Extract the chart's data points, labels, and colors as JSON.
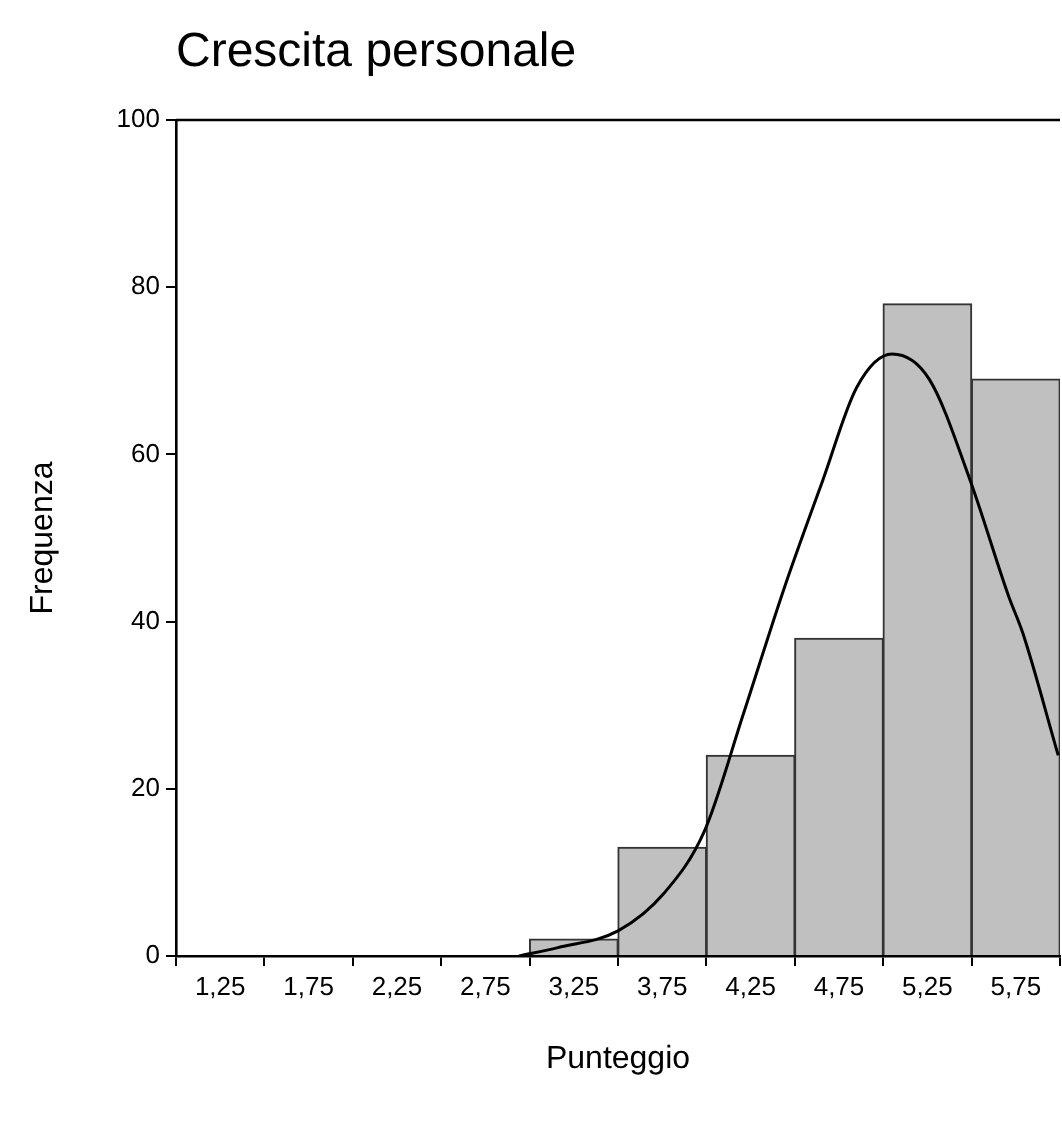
{
  "chart_data": {
    "type": "histogram",
    "title": "Crescita personale",
    "xlabel": "Punteggio",
    "ylabel": "Frequenza",
    "bins": [
      1,
      1.5,
      2,
      2.5,
      3,
      3.5,
      4,
      4.5,
      5,
      5.5,
      6
    ],
    "series": [
      {
        "color": "#c0c0c0",
        "values": [
          0,
          0,
          0,
          0,
          2,
          13,
          24,
          38,
          78,
          69
        ]
      },
      {
        "type": "line",
        "color": "#000000",
        "x": [
          2.94,
          3.16,
          3.5,
          3.76,
          3.99,
          4.21,
          4.44,
          4.66,
          4.85,
          5.05,
          5.26,
          5.49,
          5.71,
          5.79,
          5.99
        ],
        "values": [
          0,
          1,
          3,
          7.5,
          15,
          29,
          44,
          57,
          68,
          72,
          69,
          57,
          43,
          38.6,
          24
        ]
      }
    ],
    "xlim": [
      1,
      6
    ],
    "xticks": [
      {
        "value": 1.25,
        "label": "1,25"
      },
      {
        "value": 1.75,
        "label": "1,75"
      },
      {
        "value": 2.25,
        "label": "2,25"
      },
      {
        "value": 2.75,
        "label": "2,75"
      },
      {
        "value": 3.25,
        "label": "3,25"
      },
      {
        "value": 3.75,
        "label": "3,75"
      },
      {
        "value": 4.25,
        "label": "4,25"
      },
      {
        "value": 4.75,
        "label": "4,75"
      },
      {
        "value": 5.25,
        "label": "5,25"
      },
      {
        "value": 5.75,
        "label": "5,75"
      }
    ],
    "ylim": [
      0,
      100
    ],
    "yticks": [
      0,
      20,
      40,
      60,
      80,
      100
    ],
    "marker": "none",
    "legend": false
  }
}
